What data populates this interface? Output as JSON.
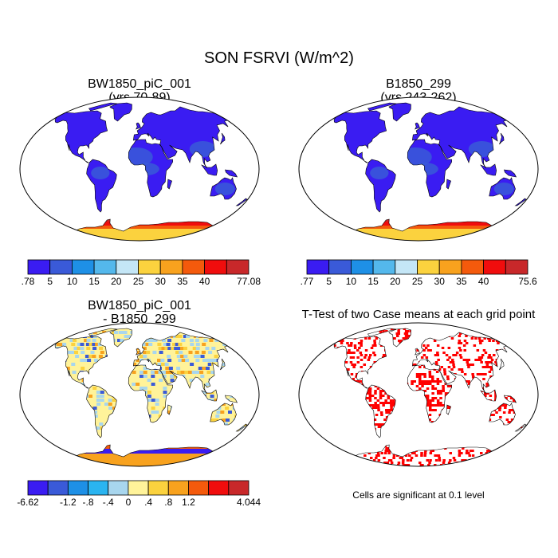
{
  "main_title": "SON FSRVI (W/m^2)",
  "panels": {
    "p1": {
      "title_line1": "BW1850_piC_001",
      "title_line2": "(yrs 70-89)"
    },
    "p2": {
      "title_line1": "B1850_299",
      "title_line2": "(yrs 243-262)"
    },
    "p3": {
      "title_line1": "BW1850_piC_001",
      "title_line2": "- B1850_299"
    },
    "p4": {
      "title_line1": "T-Test of two Case means at each grid point",
      "note": "Cells are significant at 0.1 level"
    }
  },
  "chart_data": [
    {
      "type": "heatmap",
      "title": "BW1850_piC_001 (yrs 70-89)",
      "colorbar": {
        "labels": [
          ".78",
          "5",
          "10",
          "15",
          "20",
          "25",
          "30",
          "35",
          "40",
          "77.08"
        ],
        "levels": [
          0.78,
          5,
          10,
          15,
          20,
          25,
          30,
          35,
          40,
          77.08
        ],
        "colors": [
          "#3a1cf2",
          "#3a5ad8",
          "#1e90e6",
          "#54b8ec",
          "#c4e6f6",
          "#fbd23e",
          "#f8a21e",
          "#f45a0c",
          "#f00d0d",
          "#c8282a"
        ]
      }
    },
    {
      "type": "heatmap",
      "title": "B1850_299 (yrs 243-262)",
      "colorbar": {
        "labels": [
          ".77",
          "5",
          "10",
          "15",
          "20",
          "25",
          "30",
          "35",
          "40",
          "75.6"
        ],
        "levels": [
          0.77,
          5,
          10,
          15,
          20,
          25,
          30,
          35,
          40,
          75.6
        ],
        "colors": [
          "#3a1cf2",
          "#3a5ad8",
          "#1e90e6",
          "#54b8ec",
          "#c4e6f6",
          "#fbd23e",
          "#f8a21e",
          "#f45a0c",
          "#f00d0d",
          "#c8282a"
        ]
      }
    },
    {
      "type": "heatmap",
      "title": "BW1850_piC_001 - B1850_299",
      "colorbar": {
        "labels": [
          "-6.62",
          "",
          "-1.2",
          "-.8",
          "-.4",
          "0",
          ".4",
          ".8",
          "1.2",
          "",
          "4.044"
        ],
        "levels": [
          -6.62,
          -1.6,
          -1.2,
          -0.8,
          -0.4,
          0,
          0.4,
          0.8,
          1.2,
          1.6,
          4.044
        ],
        "colors": [
          "#3a1cf2",
          "#3a5ad8",
          "#1e90e6",
          "#2ab4f0",
          "#a8d6ee",
          "#fff39a",
          "#fbd23e",
          "#f8a21e",
          "#f45a0c",
          "#f00d0d",
          "#c8282a"
        ]
      }
    },
    {
      "type": "heatmap",
      "title": "T-Test of two Case means at each grid point",
      "significance_level": 0.1,
      "significant_color": "#ff0000"
    }
  ]
}
